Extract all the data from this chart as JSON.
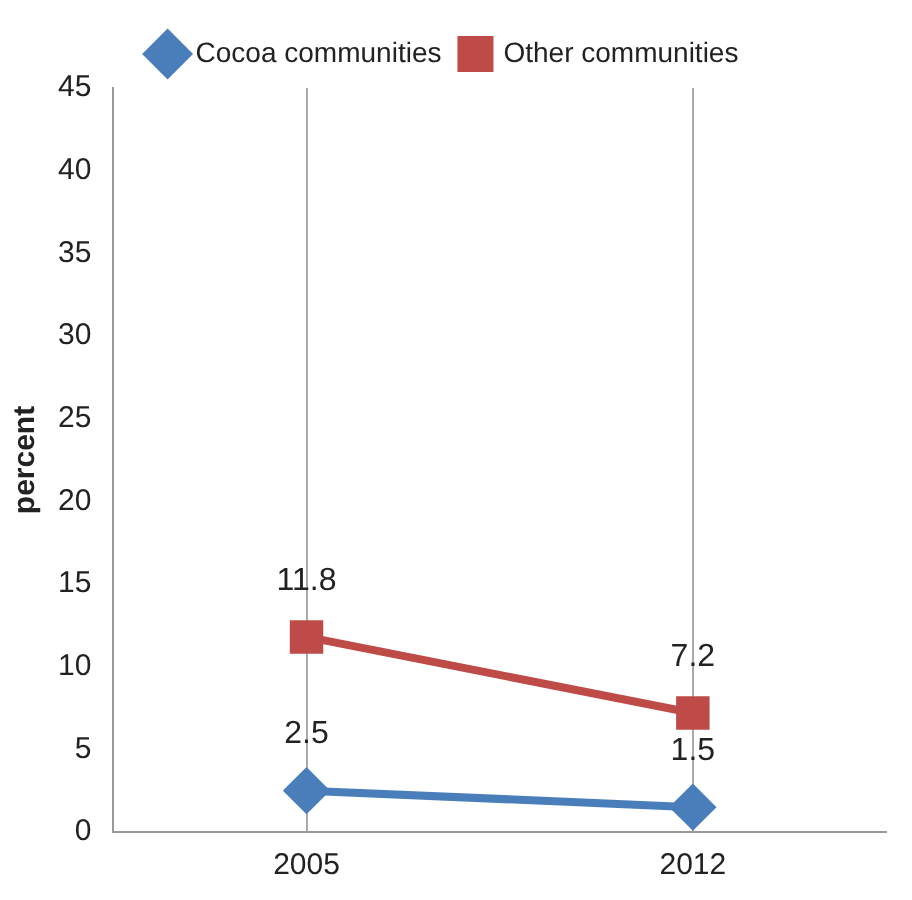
{
  "chart_data": {
    "type": "line",
    "ylabel": "percent",
    "categories": [
      "2005",
      "2012"
    ],
    "series": [
      {
        "name": "Cocoa communities",
        "color": "#4a7ebb",
        "values": [
          2.5,
          1.5
        ],
        "marker": "diamond"
      },
      {
        "name": "Other communities",
        "color": "#be4b48",
        "values": [
          11.8,
          7.2
        ],
        "marker": "square"
      }
    ],
    "ylim": [
      0,
      45
    ],
    "yticks": [
      0,
      5,
      10,
      15,
      20,
      25,
      30,
      35,
      40,
      45
    ],
    "grid": "x",
    "legend": "top",
    "data_labels": true
  }
}
